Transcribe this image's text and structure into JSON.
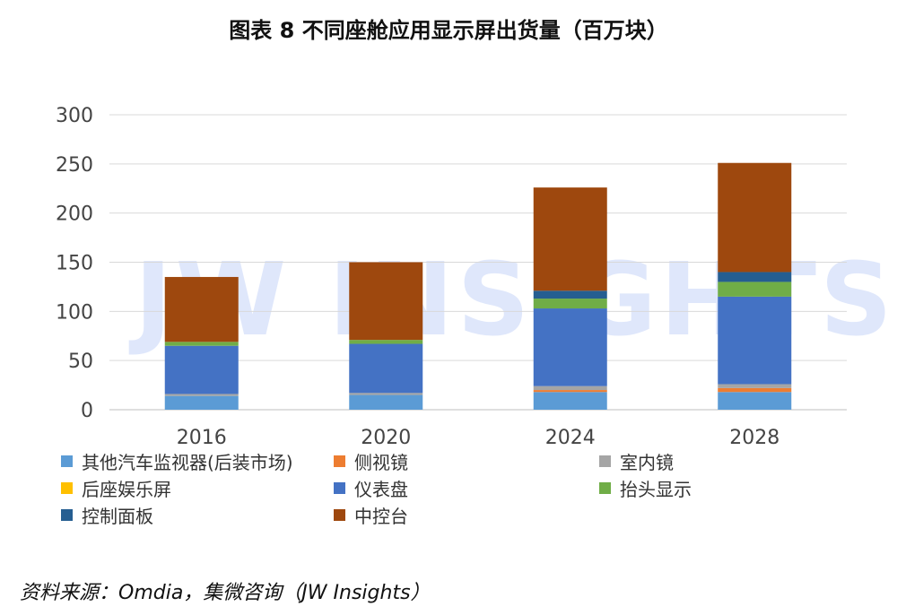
{
  "title": "图表 8  不同座舱应用显示屏出货量（百万块）",
  "watermark": "JW INSIGHTS",
  "source": "资料来源：Omdia，集微咨询（JW Insights）",
  "chart_data": {
    "type": "bar",
    "stacked": true,
    "categories": [
      "2016",
      "2020",
      "2024",
      "2028"
    ],
    "ylim": [
      0,
      300
    ],
    "yticks": [
      0,
      50,
      100,
      150,
      200,
      250,
      300
    ],
    "grid": true,
    "legend_position": "bottom",
    "series": [
      {
        "name": "其他汽车监视器(后装市场)",
        "color": "#5b9bd5",
        "values": [
          14,
          15,
          18,
          18
        ]
      },
      {
        "name": "侧视镜",
        "color": "#ed7d31",
        "values": [
          0,
          0,
          2,
          4
        ]
      },
      {
        "name": "室内镜",
        "color": "#a5a5a5",
        "values": [
          2,
          2,
          4,
          4
        ]
      },
      {
        "name": "后座娱乐屏",
        "color": "#ffc000",
        "values": [
          0,
          0,
          0,
          0
        ]
      },
      {
        "name": "仪表盘",
        "color": "#4472c4",
        "values": [
          49,
          50,
          79,
          89
        ]
      },
      {
        "name": "抬头显示",
        "color": "#70ad47",
        "values": [
          4,
          4,
          10,
          15
        ]
      },
      {
        "name": "控制面板",
        "color": "#255e91",
        "values": [
          0,
          0,
          8,
          10
        ]
      },
      {
        "name": "中控台",
        "color": "#9e480e",
        "values": [
          66,
          79,
          105,
          111
        ]
      }
    ]
  }
}
